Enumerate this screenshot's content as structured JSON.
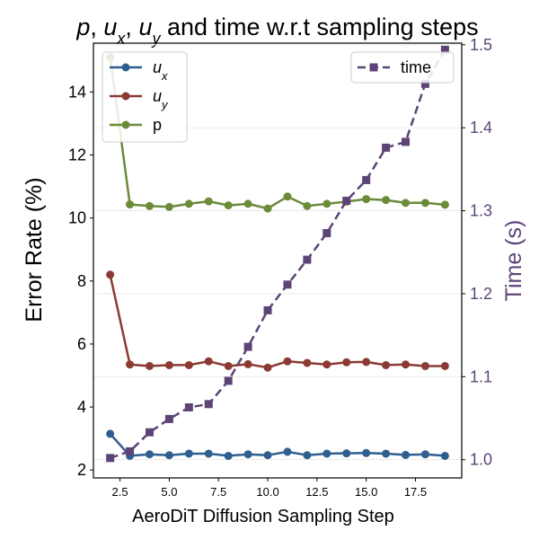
{
  "chart_data": {
    "type": "line",
    "title": "",
    "title_parts": [
      {
        "text": "p",
        "italic": true,
        "sub": null
      },
      {
        "text": ", ",
        "italic": false,
        "sub": null
      },
      {
        "text": "u",
        "italic": true,
        "sub": "x"
      },
      {
        "text": ", ",
        "italic": false,
        "sub": null
      },
      {
        "text": "u",
        "italic": true,
        "sub": "y"
      },
      {
        "text": " and time w.r.t sampling steps",
        "italic": false,
        "sub": null
      }
    ],
    "xlabel": "AeroDiT Diffusion Sampling Step",
    "ylabel": "Error Rate (%)",
    "y2label": "Time (s)",
    "x": [
      2,
      3,
      4,
      5,
      6,
      7,
      8,
      9,
      10,
      11,
      12,
      13,
      14,
      15,
      16,
      17,
      18,
      19
    ],
    "xlim": [
      1.15,
      19.85
    ],
    "ylim": [
      1.75,
      15.55
    ],
    "y2lim": [
      0.978,
      1.502
    ],
    "xticks": [
      2.5,
      5.0,
      7.5,
      10.0,
      12.5,
      15.0,
      17.5
    ],
    "xtick_labels": [
      "2.5",
      "5.0",
      "7.5",
      "10.0",
      "12.5",
      "15.0",
      "17.5"
    ],
    "yticks": [
      2,
      4,
      6,
      8,
      10,
      12,
      14
    ],
    "ytick_labels": [
      "2",
      "4",
      "6",
      "8",
      "10",
      "12",
      "14"
    ],
    "y2ticks": [
      1.0,
      1.1,
      1.2,
      1.3,
      1.4,
      1.5
    ],
    "y2tick_labels": [
      "1.0",
      "1.1",
      "1.2",
      "1.3",
      "1.4",
      "1.5"
    ],
    "grid": true,
    "series": [
      {
        "name": "u",
        "sub": "x",
        "axis": "left",
        "color": "#2f5f8f",
        "marker": "circle",
        "dash": false,
        "values": [
          3.15,
          2.45,
          2.5,
          2.47,
          2.52,
          2.52,
          2.45,
          2.5,
          2.47,
          2.58,
          2.47,
          2.52,
          2.53,
          2.54,
          2.52,
          2.48,
          2.5,
          2.45
        ]
      },
      {
        "name": "u",
        "sub": "y",
        "axis": "left",
        "color": "#8b3a33",
        "marker": "circle",
        "dash": false,
        "values": [
          8.2,
          5.35,
          5.3,
          5.33,
          5.33,
          5.45,
          5.3,
          5.36,
          5.25,
          5.45,
          5.4,
          5.35,
          5.42,
          5.43,
          5.33,
          5.35,
          5.3,
          5.3
        ]
      },
      {
        "name": "p",
        "sub": null,
        "axis": "left",
        "color": "#6b8b3a",
        "marker": "circle",
        "dash": false,
        "values": [
          15.1,
          10.43,
          10.38,
          10.35,
          10.45,
          10.53,
          10.4,
          10.45,
          10.3,
          10.68,
          10.38,
          10.45,
          10.52,
          10.6,
          10.57,
          10.48,
          10.48,
          10.42
        ]
      },
      {
        "name": "time",
        "sub": null,
        "axis": "right",
        "color": "#5d4477",
        "marker": "square",
        "dash": true,
        "values": [
          1.002,
          1.01,
          1.033,
          1.049,
          1.063,
          1.067,
          1.095,
          1.136,
          1.18,
          1.211,
          1.241,
          1.273,
          1.312,
          1.337,
          1.376,
          1.383,
          1.453,
          1.494
        ]
      }
    ],
    "legend_left": {
      "placement": "top-left",
      "entries": [
        "u_x",
        "u_y",
        "p"
      ]
    },
    "legend_right": {
      "placement": "top-right",
      "entries": [
        "time"
      ]
    },
    "colors": {
      "axis": "#000000",
      "right_axis": "#5d4477",
      "grid": "#e6e6e6"
    }
  }
}
